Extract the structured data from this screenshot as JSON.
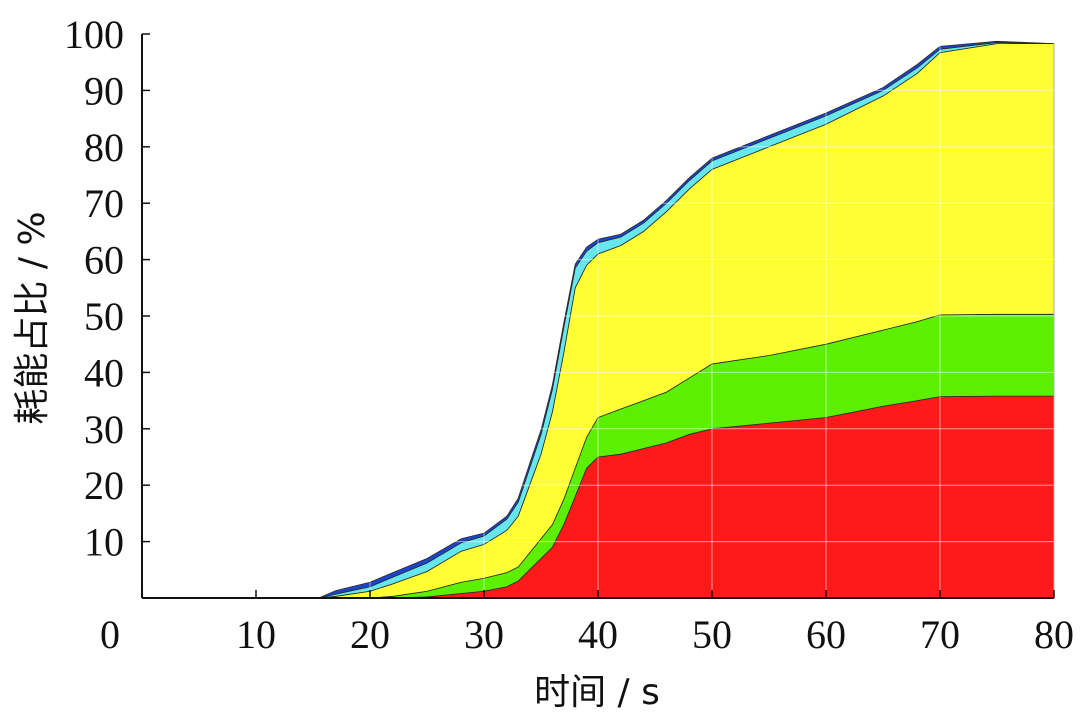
{
  "chart_data": {
    "type": "area",
    "stacked": true,
    "xlabel": "时间 / s",
    "ylabel": "耗能占比 / %",
    "xlim": [
      0,
      80
    ],
    "ylim": [
      0,
      100
    ],
    "x_ticks": [
      "0",
      "10",
      "20",
      "30",
      "40",
      "50",
      "60",
      "70",
      "80"
    ],
    "y_ticks": [
      "10",
      "20",
      "30",
      "40",
      "50",
      "60",
      "70",
      "80",
      "90",
      "100"
    ],
    "grid": true,
    "legend": "none",
    "x": [
      15.5,
      17,
      20,
      22,
      25,
      28,
      30,
      32,
      33,
      34,
      35,
      36,
      37,
      38,
      39,
      40,
      42,
      44,
      46,
      48,
      50,
      55,
      60,
      65,
      68,
      70,
      75,
      80
    ],
    "series": [
      {
        "color": "#ff1a1a",
        "values": [
          0,
          0,
          0,
          0,
          0.2,
          0.8,
          1.2,
          2,
          3,
          5,
          7,
          9,
          13,
          18,
          23,
          25,
          25.5,
          26.5,
          27.5,
          29,
          30,
          31,
          32,
          34,
          35,
          35.7,
          35.8,
          35.8
        ]
      },
      {
        "color": "#5cf000",
        "values": [
          0,
          0,
          0,
          0.3,
          1,
          2,
          2.3,
          2.5,
          2.5,
          3,
          3.5,
          4,
          4.5,
          5,
          5.5,
          7,
          8,
          8.5,
          9,
          10,
          11.5,
          12,
          13,
          13.5,
          14,
          14.5,
          14.5,
          14.5
        ]
      },
      {
        "color": "#ffff33",
        "values": [
          0,
          0.3,
          1.2,
          2.2,
          3.5,
          5.5,
          6,
          7.5,
          9,
          12,
          15,
          20,
          26,
          32,
          30.5,
          29,
          29,
          30,
          32,
          33.5,
          34.5,
          37,
          39,
          41.5,
          44,
          46.5,
          48,
          48
        ]
      },
      {
        "color": "#66e6ee",
        "values": [
          0,
          0.4,
          0.8,
          1.2,
          1.5,
          1.5,
          1.5,
          2,
          2.5,
          3,
          3.5,
          4,
          4.5,
          3.5,
          2.5,
          2,
          1.5,
          1.5,
          1.5,
          1.5,
          1.5,
          1.5,
          1.5,
          1,
          1,
          0.6,
          0.2,
          0
        ]
      },
      {
        "color": "#1e44cc",
        "values": [
          0,
          0.6,
          0.8,
          0.8,
          0.8,
          0.7,
          0.5,
          0.5,
          0.7,
          0.8,
          0.8,
          0.8,
          0.8,
          0.7,
          0.7,
          0.6,
          0.5,
          0.5,
          0.5,
          0.5,
          0.5,
          0.5,
          0.5,
          0.5,
          0.6,
          0.5,
          0.2,
          0
        ]
      }
    ]
  }
}
